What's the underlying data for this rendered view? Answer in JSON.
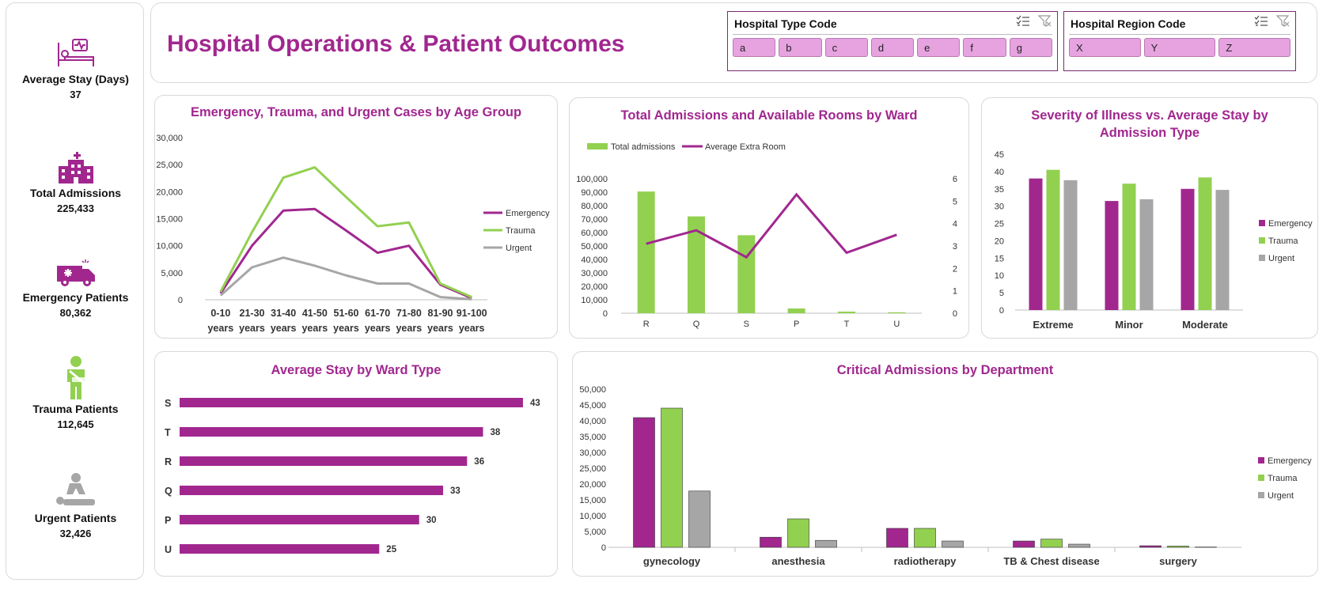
{
  "kpis": [
    {
      "label": "Average Stay (Days)",
      "value": "37",
      "icon": "hospital-bed-icon"
    },
    {
      "label": "Total Admissions",
      "value": "225,433",
      "icon": "hospital-building-icon"
    },
    {
      "label": "Emergency Patients",
      "value": "80,362",
      "icon": "ambulance-icon"
    },
    {
      "label": "Trauma Patients",
      "value": "112,645",
      "icon": "injured-person-icon"
    },
    {
      "label": "Urgent Patients",
      "value": "32,426",
      "icon": "cpr-icon"
    }
  ],
  "header": {
    "title": "Hospital Operations & Patient Outcomes"
  },
  "slicers": {
    "hospital_type": {
      "title": "Hospital Type Code",
      "items": [
        "a",
        "b",
        "c",
        "d",
        "e",
        "f",
        "g"
      ]
    },
    "hospital_region": {
      "title": "Hospital Region Code",
      "items": [
        "X",
        "Y",
        "Z"
      ]
    }
  },
  "colors": {
    "emergency": "#a1278f",
    "trauma": "#92d050",
    "urgent": "#a6a6a6",
    "title": "#a1278f"
  },
  "chart_data": [
    {
      "id": "age",
      "type": "line",
      "title": "Emergency, Trauma, and Urgent Cases by Age Group",
      "categories": [
        "0-10 years",
        "21-30 years",
        "31-40 years",
        "41-50 years",
        "51-60 years",
        "61-70 years",
        "71-80 years",
        "81-90 years",
        "91-100 years"
      ],
      "series": [
        {
          "name": "Emergency",
          "values": [
            1200,
            10000,
            16500,
            16800,
            12800,
            8700,
            10000,
            2800,
            300
          ]
        },
        {
          "name": "Trauma",
          "values": [
            1500,
            12500,
            22600,
            24500,
            19000,
            13600,
            14300,
            3000,
            500
          ]
        },
        {
          "name": "Urgent",
          "values": [
            800,
            6000,
            7800,
            6300,
            4500,
            3000,
            3000,
            500,
            100
          ]
        }
      ],
      "ylim": [
        0,
        30000
      ],
      "yticks": [
        "0",
        "5,000",
        "10,000",
        "15,000",
        "20,000",
        "25,000",
        "30,000"
      ],
      "legend": "right"
    },
    {
      "id": "ward",
      "type": "bar",
      "title": "Total Admissions and Available Rooms by Ward",
      "categories": [
        "R",
        "Q",
        "S",
        "P",
        "T",
        "U"
      ],
      "series": [
        {
          "name": "Total admissions",
          "type": "bar",
          "values": [
            90500,
            72000,
            58000,
            3500,
            1200,
            700
          ]
        },
        {
          "name": "Average Extra Room",
          "type": "line",
          "axis": "secondary",
          "values": [
            3.1,
            3.7,
            2.5,
            5.3,
            2.7,
            3.5
          ]
        }
      ],
      "ylim": [
        0,
        100000
      ],
      "yticks": [
        "0",
        "10,000",
        "20,000",
        "30,000",
        "40,000",
        "50,000",
        "60,000",
        "70,000",
        "80,000",
        "90,000",
        "100,000"
      ],
      "y2lim": [
        0,
        6
      ],
      "y2ticks": [
        "0",
        "1",
        "2",
        "3",
        "4",
        "5",
        "6"
      ],
      "legend": "top"
    },
    {
      "id": "severity",
      "type": "bar",
      "title": "Severity of Illness vs. Average Stay by Admission Type",
      "categories": [
        "Extreme",
        "Minor",
        "Moderate"
      ],
      "series": [
        {
          "name": "Emergency",
          "values": [
            38,
            31.5,
            35
          ]
        },
        {
          "name": "Trauma",
          "values": [
            40.5,
            36.5,
            38.3
          ]
        },
        {
          "name": "Urgent",
          "values": [
            37.5,
            32,
            34.7
          ]
        }
      ],
      "ylim": [
        0,
        45
      ],
      "yticks": [
        "0",
        "5",
        "10",
        "15",
        "20",
        "25",
        "30",
        "35",
        "40",
        "45"
      ],
      "legend": "right"
    },
    {
      "id": "stay",
      "type": "bar",
      "orientation": "horizontal",
      "title": "Average Stay by Ward Type",
      "categories": [
        "S",
        "T",
        "R",
        "Q",
        "P",
        "U"
      ],
      "values": [
        43,
        38,
        36,
        33,
        30,
        25
      ],
      "labels": [
        "43",
        "38",
        "36",
        "33",
        "30",
        "25"
      ]
    },
    {
      "id": "dept",
      "type": "bar",
      "title": "Critical Admissions by Department",
      "categories": [
        "gynecology",
        "anesthesia",
        "radiotherapy",
        "TB & Chest disease",
        "surgery"
      ],
      "series": [
        {
          "name": "Emergency",
          "values": [
            41000,
            3200,
            6000,
            2000,
            500
          ]
        },
        {
          "name": "Trauma",
          "values": [
            44000,
            9000,
            6000,
            2600,
            400
          ]
        },
        {
          "name": "Urgent",
          "values": [
            17800,
            2200,
            2000,
            1000,
            100
          ]
        }
      ],
      "ylim": [
        0,
        50000
      ],
      "yticks": [
        "0",
        "5,000",
        "10,000",
        "15,000",
        "20,000",
        "25,000",
        "30,000",
        "35,000",
        "40,000",
        "45,000",
        "50,000"
      ],
      "legend": "right"
    }
  ]
}
